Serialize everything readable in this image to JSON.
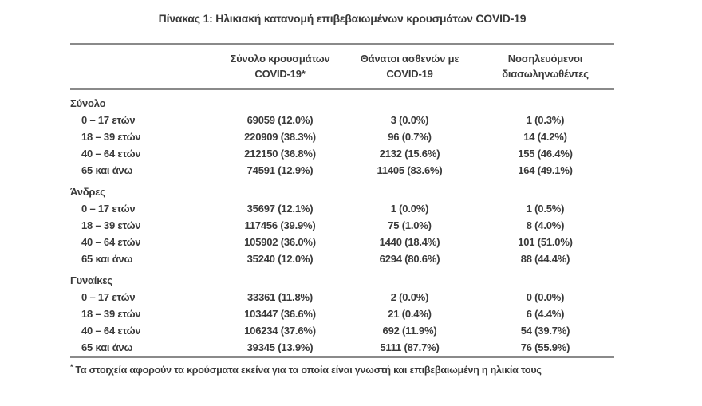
{
  "title": "Πίνακας 1: Ηλικιακή κατανομή επιβεβαιωμένων κρουσμάτων COVID-19",
  "table": {
    "columns": [
      {
        "line1": "Σύνολο κρουσμάτων",
        "line2": "COVID-19*"
      },
      {
        "line1": "Θάνατοι ασθενών με",
        "line2": "COVID-19"
      },
      {
        "line1": "Νοσηλευόμενοι",
        "line2": "διασωληνωθέντες"
      }
    ],
    "sections": [
      {
        "label": "Σύνολο",
        "rows": [
          {
            "age": "0 – 17 ετών",
            "cases": "69059 (12.0%)",
            "deaths": "3 (0.0%)",
            "intubated": "1 (0.3%)"
          },
          {
            "age": "18 – 39 ετών",
            "cases": "220909 (38.3%)",
            "deaths": "96 (0.7%)",
            "intubated": "14 (4.2%)"
          },
          {
            "age": "40 – 64 ετών",
            "cases": "212150 (36.8%)",
            "deaths": "2132 (15.6%)",
            "intubated": "155 (46.4%)"
          },
          {
            "age": "65 και άνω",
            "cases": "74591 (12.9%)",
            "deaths": "11405 (83.6%)",
            "intubated": "164 (49.1%)"
          }
        ]
      },
      {
        "label": "Άνδρες",
        "rows": [
          {
            "age": "0 – 17 ετών",
            "cases": "35697 (12.1%)",
            "deaths": "1 (0.0%)",
            "intubated": "1 (0.5%)"
          },
          {
            "age": "18 – 39 ετών",
            "cases": "117456 (39.9%)",
            "deaths": "75 (1.0%)",
            "intubated": "8 (4.0%)"
          },
          {
            "age": "40 – 64 ετών",
            "cases": "105902 (36.0%)",
            "deaths": "1440 (18.4%)",
            "intubated": "101 (51.0%)"
          },
          {
            "age": "65 και άνω",
            "cases": "35240 (12.0%)",
            "deaths": "6294 (80.6%)",
            "intubated": "88 (44.4%)"
          }
        ]
      },
      {
        "label": "Γυναίκες",
        "rows": [
          {
            "age": "0 – 17 ετών",
            "cases": "33361 (11.8%)",
            "deaths": "2 (0.0%)",
            "intubated": "0 (0.0%)"
          },
          {
            "age": "18 – 39 ετών",
            "cases": "103447 (36.6%)",
            "deaths": "21 (0.4%)",
            "intubated": "6 (4.4%)"
          },
          {
            "age": "40 – 64 ετών",
            "cases": "106234 (37.6%)",
            "deaths": "692 (11.9%)",
            "intubated": "54 (39.7%)"
          },
          {
            "age": "65 και άνω",
            "cases": "39345 (13.9%)",
            "deaths": "5111 (87.7%)",
            "intubated": "76 (55.9%)"
          }
        ]
      }
    ]
  },
  "footnote": {
    "marker": "*",
    "text": "Τα στοιχεία αφορούν τα κρούσματα εκείνα για τα οποία είναι γνωστή και επιβεβαιωμένη η ηλικία τους"
  },
  "colors": {
    "text": "#3a3a3a",
    "rule_line": "#8a8a8a",
    "background": "#ffffff"
  }
}
